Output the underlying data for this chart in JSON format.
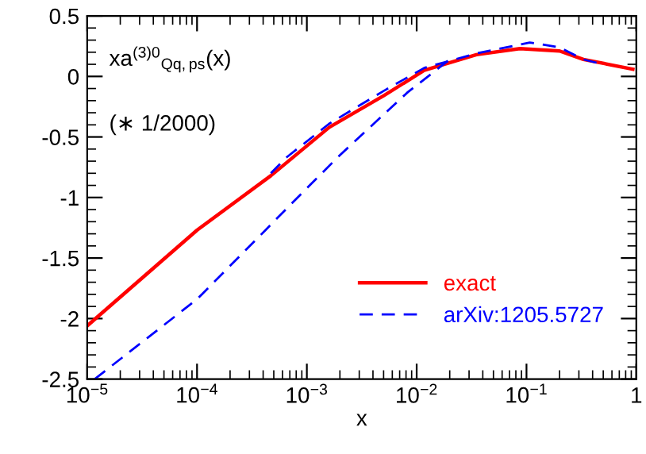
{
  "chart_data": {
    "type": "line",
    "xlabel": "x",
    "annotations": [
      "xa$^{(3)0}$$_{Qq,ps}$(x)",
      "(∗ 1/2000)"
    ],
    "log": "x",
    "grid": false,
    "legend": "bottom right",
    "xlim": [
      1e-05,
      1
    ],
    "ylim": [
      -2.5,
      0.5
    ],
    "xticks": [
      {
        "value": 1e-05,
        "label": "10$^{−5}$"
      },
      {
        "value": 0.0001,
        "label": "10$^{−4}$"
      },
      {
        "value": 0.001,
        "label": "10$^{−3}$"
      },
      {
        "value": 0.01,
        "label": "10$^{−2}$"
      },
      {
        "value": 0.1,
        "label": "10$^{−1}$"
      },
      1
    ],
    "yticks": [
      -2.5,
      -2,
      -1.5,
      -1,
      -0.5,
      0,
      0.5
    ],
    "series": [
      {
        "name": "exact",
        "color": "#ff0000",
        "line_style": "solid",
        "x": [
          1e-05,
          0.0001,
          0.00047,
          0.0016,
          0.005,
          0.0117,
          0.035,
          0.087,
          0.2,
          0.33,
          0.93
        ],
        "values": [
          -2.06,
          -1.27,
          -0.82,
          -0.42,
          -0.16,
          0.05,
          0.18,
          0.23,
          0.21,
          0.14,
          0.06
        ]
      },
      {
        "name": "arXiv:1205.5727",
        "color": "#0000ff",
        "line_style": "dashed",
        "x": [
          0.00047,
          0.00065,
          0.0016,
          0.005,
          0.0117,
          0.035,
          0.107,
          0.2,
          0.33,
          0.45
        ],
        "values": [
          -0.8,
          -0.67,
          -0.39,
          -0.12,
          0.07,
          0.19,
          0.28,
          0.24,
          0.14,
          0.11
        ]
      },
      {
        "color": "#0000ff",
        "line_style": "dashed",
        "x": [
          1.17e-05,
          0.0001,
          0.00042,
          0.00051,
          0.002,
          0.0083,
          0.02
        ],
        "values": [
          -2.5,
          -1.84,
          -1.27,
          -1.19,
          -0.65,
          -0.13,
          0.14
        ]
      }
    ]
  }
}
